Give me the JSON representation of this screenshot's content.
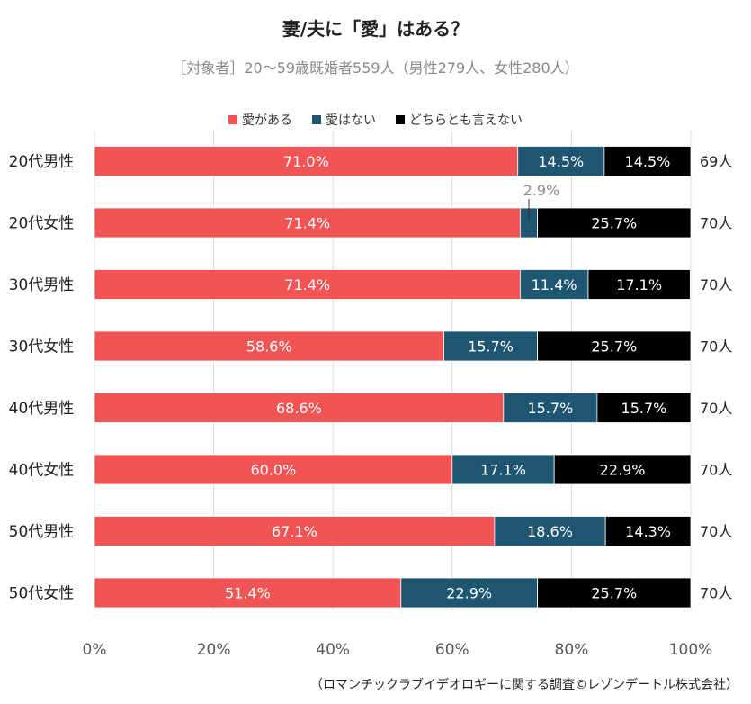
{
  "header": {
    "title": "妻/夫に「愛」はある？",
    "subtitle": "［対象者］20～59歳既婚者559人（男性279人、女性280人）"
  },
  "legend": [
    {
      "label": "愛がある",
      "color": "#f05454"
    },
    {
      "label": "愛はない",
      "color": "#1e5570"
    },
    {
      "label": "どちらとも言えない",
      "color": "#000000"
    }
  ],
  "footer": {
    "source": "（ロマンチックラブイデオロギーに関する調査©レゾンデートル株式会社）"
  },
  "chart_data": {
    "type": "bar",
    "orientation": "horizontal",
    "stacked": true,
    "categories": [
      "20代男性",
      "20代女性",
      "30代男性",
      "30代女性",
      "40代男性",
      "40代女性",
      "50代男性",
      "50代女性"
    ],
    "series": [
      {
        "name": "愛がある",
        "color": "#f05454",
        "values": [
          71.0,
          71.4,
          71.4,
          58.6,
          68.6,
          60.0,
          67.1,
          51.4
        ],
        "labels": [
          "71.0%",
          "71.4%",
          "71.4%",
          "58.6%",
          "68.6%",
          "60.0%",
          "67.1%",
          "51.4%"
        ]
      },
      {
        "name": "愛はない",
        "color": "#1e5570",
        "values": [
          14.5,
          2.9,
          11.4,
          15.7,
          15.7,
          17.1,
          18.6,
          22.9
        ],
        "labels": [
          "14.5%",
          "2.9%",
          "11.4%",
          "15.7%",
          "15.7%",
          "17.1%",
          "18.6%",
          "22.9%"
        ]
      },
      {
        "name": "どちらとも言えない",
        "color": "#000000",
        "values": [
          14.5,
          25.7,
          17.1,
          25.7,
          15.7,
          22.9,
          14.3,
          25.7
        ],
        "labels": [
          "14.5%",
          "25.7%",
          "17.1%",
          "25.7%",
          "15.7%",
          "22.9%",
          "14.3%",
          "25.7%"
        ]
      }
    ],
    "counts": [
      "69人",
      "70人",
      "70人",
      "70人",
      "70人",
      "70人",
      "70人",
      "70人"
    ],
    "xlim": [
      0,
      100
    ],
    "xticks": [
      "0%",
      "20%",
      "40%",
      "60%",
      "80%",
      "100%"
    ],
    "grid": true,
    "legend_position": "top"
  }
}
